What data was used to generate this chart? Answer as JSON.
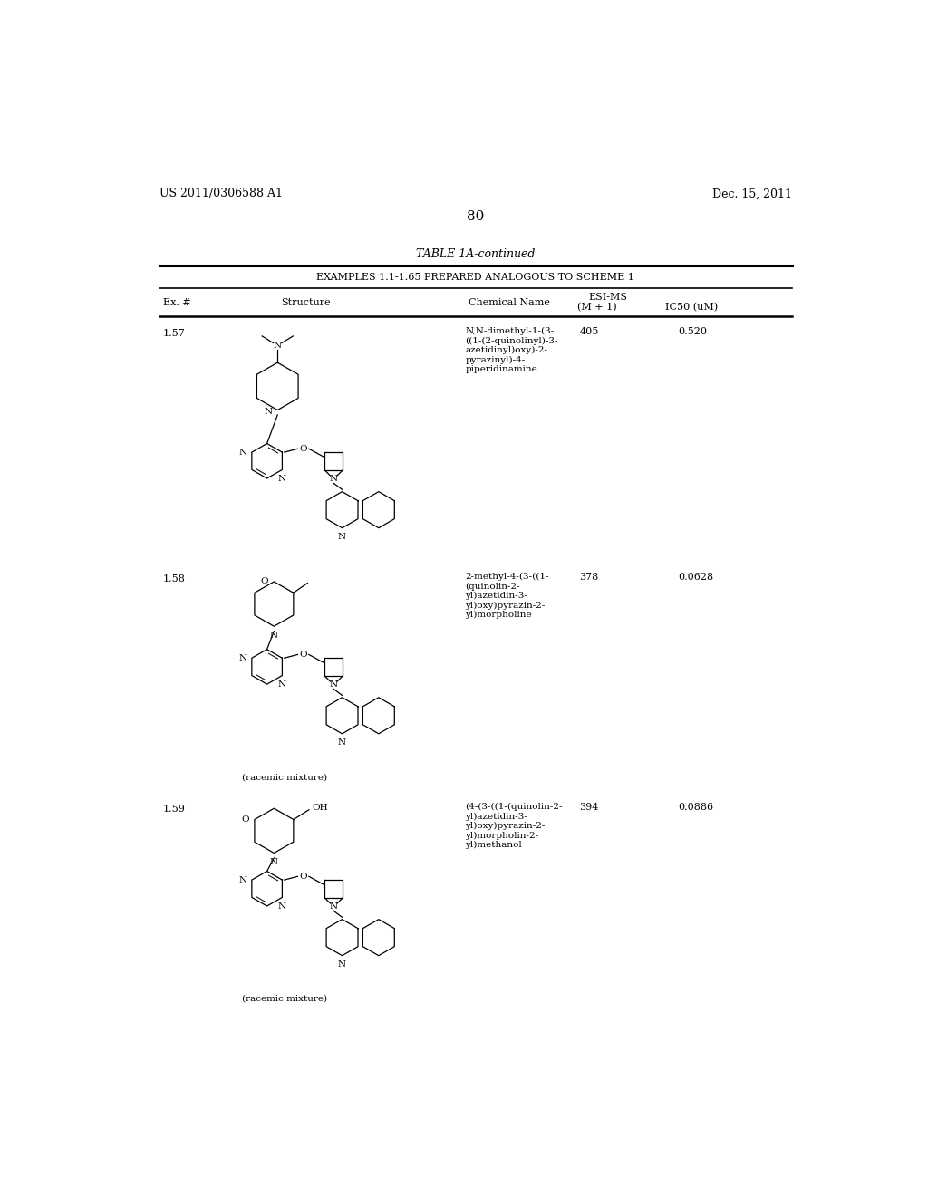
{
  "page_header_left": "US 2011/0306588 A1",
  "page_header_right": "Dec. 15, 2011",
  "page_number": "80",
  "table_title": "TABLE 1A-continued",
  "table_subtitle": "EXAMPLES 1.1-1.65 PREPARED ANALOGOUS TO SCHEME 1",
  "col_ex": "Ex. #",
  "col_structure": "Structure",
  "col_chemname": "Chemical Name",
  "col_esims": "ESI-MS",
  "col_mp1": "(M + 1)",
  "col_ic50": "IC50 (uM)",
  "rows": [
    {
      "ex": "1.57",
      "chemical_name": "N,N-dimethyl-1-(3-\n((1-(2-quinolinyl)-3-\nazetidinyl)oxy)-2-\npyrazinyl)-4-\npiperidinamine",
      "ms": "405",
      "ic50": "0.520",
      "note": ""
    },
    {
      "ex": "1.58",
      "chemical_name": "2-methyl-4-(3-((1-\n(quinolin-2-\nyl)azetidin-3-\nyl)oxy)pyrazin-2-\nyl)morpholine",
      "ms": "378",
      "ic50": "0.0628",
      "note": "(racemic mixture)"
    },
    {
      "ex": "1.59",
      "chemical_name": "(4-(3-((1-(quinolin-2-\nyl)azetidin-3-\nyl)oxy)pyrazin-2-\nyl)morpholin-2-\nyl)methanol",
      "ms": "394",
      "ic50": "0.0886",
      "note": "(racemic mixture)"
    }
  ],
  "background_color": "#ffffff",
  "text_color": "#000000"
}
